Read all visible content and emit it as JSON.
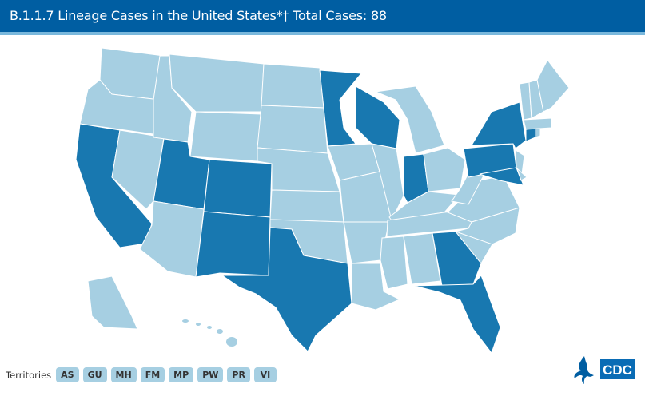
{
  "header": {
    "title": "B.1.1.7 Lineage Cases in the United States*† Total Cases: 88"
  },
  "colors": {
    "with_cases": "#1878b0",
    "no_cases": "#a6cfe2",
    "border": "#ffffff",
    "header": "#005ea2"
  },
  "states_with_cases": {
    "WA": false,
    "OR": false,
    "CA": true,
    "NV": false,
    "ID": false,
    "MT": false,
    "WY": false,
    "UT": true,
    "CO": true,
    "AZ": false,
    "NM": true,
    "ND": false,
    "SD": false,
    "NE": false,
    "KS": false,
    "OK": false,
    "TX": true,
    "MN": true,
    "IA": false,
    "MO": false,
    "AR": false,
    "LA": false,
    "WI": true,
    "IL": false,
    "MI": false,
    "IN": true,
    "OH": false,
    "KY": false,
    "TN": false,
    "MS": false,
    "AL": false,
    "GA": true,
    "FL": true,
    "SC": false,
    "NC": false,
    "VA": false,
    "WV": false,
    "PA": true,
    "NY": true,
    "MD": true,
    "NJ": false,
    "DE": false,
    "CT": true,
    "RI": false,
    "MA": false,
    "VT": false,
    "NH": false,
    "ME": false,
    "AK": false,
    "HI": false
  },
  "territories": {
    "label": "Territories",
    "items": [
      "AS",
      "GU",
      "MH",
      "FM",
      "MP",
      "PW",
      "PR",
      "VI"
    ]
  },
  "logo": {
    "text": "CDC"
  }
}
